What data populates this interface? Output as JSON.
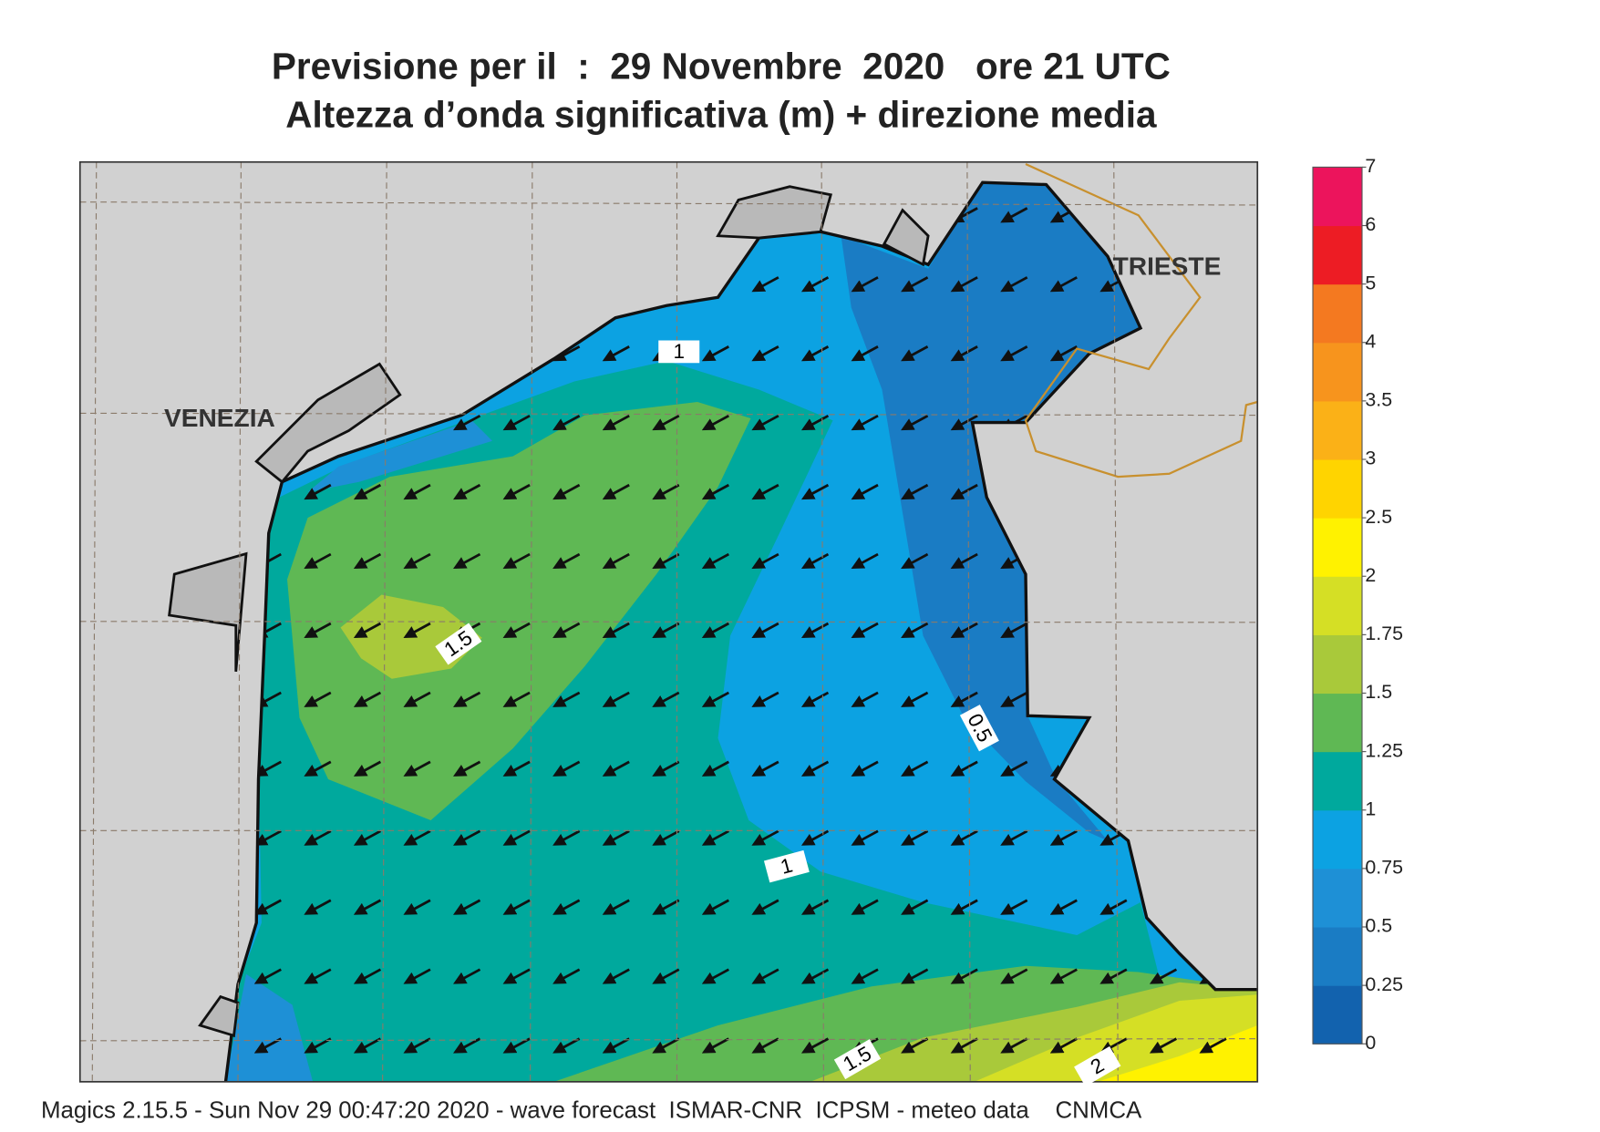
{
  "header": {
    "title": "Previsione per il  :  29 Novembre  2020   ore 21 UTC",
    "subtitle": "Altezza d’onda significativa (m) + direzione media"
  },
  "map": {
    "places": [
      "VENEZIA",
      "TRIESTE"
    ],
    "contour_labels": [
      1,
      1.5,
      0.5,
      1,
      1.5,
      2
    ]
  },
  "colorbar": {
    "ticks": [
      0,
      0.25,
      0.5,
      0.75,
      1,
      1.25,
      1.5,
      1.75,
      2,
      2.5,
      3,
      3.5,
      4,
      5,
      6,
      7
    ],
    "colors": [
      "#1262ae",
      "#1a7cc4",
      "#1e90d6",
      "#0ca2e2",
      "#00a99d",
      "#5fb854",
      "#a9c93a",
      "#d5df25",
      "#fff200",
      "#ffd400",
      "#fbb117",
      "#f7941d",
      "#f47920",
      "#ed1c24",
      "#ec145c"
    ]
  },
  "footer": "Magics 2.15.5 - Sun Nov 29 00:47:20 2020 - wave forecast  ISMAR-CNR  ICPSM - meteo data    CNMCA"
}
